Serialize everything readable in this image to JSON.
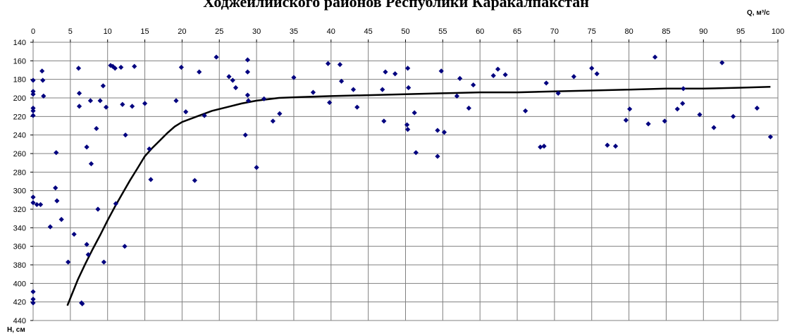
{
  "title": "Ходжейлийского районов Республики Каракалпакстан",
  "chart_data": {
    "type": "scatter",
    "x_label": "Q, м³/с",
    "y_label": "H, см",
    "xlim": [
      0,
      100
    ],
    "ylim": [
      140,
      440
    ],
    "y_inverted": true,
    "x_axis_position": "top",
    "grid": true,
    "marker_color": "#00007f",
    "line_color": "#000000",
    "x_ticks": [
      "0",
      "5",
      "10",
      "15",
      "20",
      "25",
      "30",
      "35",
      "40",
      "45",
      "50",
      "55",
      "60",
      "65",
      "70",
      "75",
      "80",
      "85",
      "90",
      "95",
      "100"
    ],
    "y_ticks": [
      "140",
      "160",
      "180",
      "200",
      "220",
      "240",
      "260",
      "280",
      "300",
      "320",
      "340",
      "360",
      "380",
      "400",
      "420",
      "440"
    ],
    "points": [
      [
        0,
        181
      ],
      [
        0,
        193
      ],
      [
        0,
        196
      ],
      [
        0,
        211
      ],
      [
        0,
        214
      ],
      [
        0,
        219
      ],
      [
        0,
        307
      ],
      [
        0,
        313
      ],
      [
        0,
        409
      ],
      [
        0,
        417
      ],
      [
        0,
        421
      ],
      [
        0.5,
        315
      ],
      [
        1.0,
        315
      ],
      [
        1.2,
        171
      ],
      [
        1.3,
        181
      ],
      [
        1.4,
        198
      ],
      [
        2.3,
        339
      ],
      [
        3.0,
        297
      ],
      [
        3.1,
        259
      ],
      [
        3.2,
        311
      ],
      [
        3.8,
        331
      ],
      [
        4.7,
        377
      ],
      [
        5.5,
        347
      ],
      [
        6.1,
        168
      ],
      [
        6.2,
        195
      ],
      [
        6.2,
        209
      ],
      [
        6.5,
        421
      ],
      [
        6.6,
        422
      ],
      [
        7.2,
        358
      ],
      [
        7.2,
        253
      ],
      [
        7.4,
        369
      ],
      [
        7.7,
        203
      ],
      [
        7.8,
        271
      ],
      [
        8.5,
        233
      ],
      [
        8.7,
        320
      ],
      [
        9.0,
        203
      ],
      [
        9.4,
        187
      ],
      [
        9.5,
        377
      ],
      [
        9.8,
        210
      ],
      [
        10.4,
        165
      ],
      [
        10.7,
        166
      ],
      [
        11.0,
        168
      ],
      [
        11.1,
        314
      ],
      [
        11.8,
        167
      ],
      [
        12.0,
        207
      ],
      [
        12.3,
        360
      ],
      [
        12.4,
        240
      ],
      [
        13.3,
        209
      ],
      [
        13.6,
        166
      ],
      [
        15.0,
        206
      ],
      [
        15.6,
        255
      ],
      [
        15.8,
        288
      ],
      [
        19.2,
        203
      ],
      [
        19.9,
        167
      ],
      [
        20.5,
        215
      ],
      [
        21.7,
        289
      ],
      [
        22.3,
        172
      ],
      [
        23.0,
        219
      ],
      [
        24.6,
        156
      ],
      [
        26.3,
        177
      ],
      [
        26.8,
        181
      ],
      [
        27.2,
        189
      ],
      [
        28.5,
        240
      ],
      [
        28.8,
        159
      ],
      [
        28.8,
        172
      ],
      [
        28.8,
        197
      ],
      [
        28.9,
        203
      ],
      [
        30.0,
        275
      ],
      [
        31.0,
        201
      ],
      [
        32.2,
        225
      ],
      [
        33.1,
        217
      ],
      [
        35.0,
        178
      ],
      [
        37.6,
        194
      ],
      [
        39.6,
        163
      ],
      [
        39.8,
        205
      ],
      [
        41.2,
        164
      ],
      [
        41.4,
        182
      ],
      [
        43.0,
        191
      ],
      [
        43.5,
        210
      ],
      [
        46.9,
        191
      ],
      [
        47.1,
        225
      ],
      [
        47.3,
        172
      ],
      [
        48.6,
        174
      ],
      [
        50.2,
        229
      ],
      [
        50.3,
        234
      ],
      [
        50.3,
        168
      ],
      [
        50.4,
        189
      ],
      [
        51.2,
        216
      ],
      [
        51.4,
        259
      ],
      [
        54.3,
        235
      ],
      [
        54.3,
        263
      ],
      [
        54.8,
        171
      ],
      [
        55.2,
        237
      ],
      [
        56.9,
        198
      ],
      [
        57.3,
        179
      ],
      [
        58.5,
        211
      ],
      [
        59.1,
        186
      ],
      [
        61.8,
        176
      ],
      [
        62.4,
        169
      ],
      [
        63.4,
        175
      ],
      [
        66.1,
        214
      ],
      [
        68.1,
        253
      ],
      [
        68.6,
        252
      ],
      [
        68.9,
        184
      ],
      [
        70.5,
        195
      ],
      [
        72.6,
        177
      ],
      [
        75.0,
        168
      ],
      [
        75.7,
        174
      ],
      [
        77.1,
        251
      ],
      [
        78.2,
        252
      ],
      [
        79.6,
        224
      ],
      [
        80.1,
        212
      ],
      [
        82.6,
        228
      ],
      [
        83.5,
        156
      ],
      [
        84.8,
        225
      ],
      [
        86.5,
        212
      ],
      [
        87.2,
        206
      ],
      [
        87.3,
        190
      ],
      [
        89.5,
        218
      ],
      [
        91.4,
        232
      ],
      [
        92.5,
        162
      ],
      [
        94.0,
        220
      ],
      [
        97.2,
        211
      ],
      [
        99.0,
        242
      ]
    ],
    "trend_curve": [
      [
        4.6,
        424
      ],
      [
        5,
        416
      ],
      [
        6,
        396
      ],
      [
        7,
        379
      ],
      [
        8,
        363
      ],
      [
        9,
        348
      ],
      [
        10,
        332
      ],
      [
        11,
        317
      ],
      [
        12,
        303
      ],
      [
        13,
        289
      ],
      [
        14,
        276
      ],
      [
        15,
        263
      ],
      [
        16,
        254
      ],
      [
        17,
        246
      ],
      [
        18,
        238
      ],
      [
        19,
        231
      ],
      [
        20,
        226
      ],
      [
        22,
        220
      ],
      [
        24,
        214
      ],
      [
        26,
        210
      ],
      [
        28,
        206
      ],
      [
        30,
        203
      ],
      [
        33,
        200
      ],
      [
        36,
        199
      ],
      [
        40,
        198
      ],
      [
        45,
        197
      ],
      [
        50,
        196
      ],
      [
        55,
        195
      ],
      [
        60,
        194
      ],
      [
        65,
        194
      ],
      [
        70,
        193
      ],
      [
        75,
        192
      ],
      [
        80,
        191
      ],
      [
        85,
        190
      ],
      [
        90,
        190
      ],
      [
        95,
        189
      ],
      [
        99,
        188
      ]
    ]
  }
}
